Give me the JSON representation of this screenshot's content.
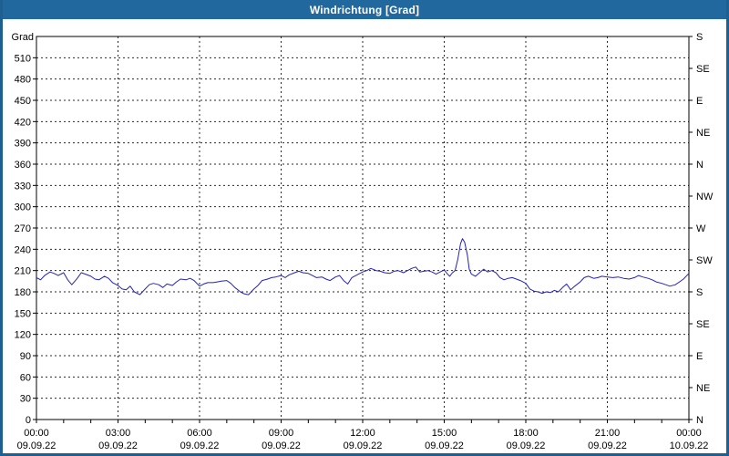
{
  "window": {
    "title": "Windrichtung [Grad]"
  },
  "colors": {
    "titlebar_bg": "#20689E",
    "titlebar_fg": "#FFFFFF",
    "frame": "#1E5F92",
    "plot_bg": "#FFFFFF",
    "axis": "#000000",
    "grid": "#2A2A2A",
    "label": "#000000",
    "line": "#2222BE"
  },
  "chart_data": {
    "type": "line",
    "title": "Windrichtung [Grad]",
    "grid": "dashed",
    "legend": "none",
    "y_axis_left": {
      "label": "Grad",
      "min": 0,
      "max": 540,
      "tick_step": 30,
      "tick_labels": [
        "0",
        "30",
        "60",
        "90",
        "120",
        "150",
        "180",
        "210",
        "240",
        "270",
        "300",
        "330",
        "360",
        "390",
        "420",
        "450",
        "480",
        "510"
      ]
    },
    "y_axis_right": {
      "tick_step": 45,
      "labels": [
        {
          "value": 540,
          "label": "S"
        },
        {
          "value": 495,
          "label": "SE"
        },
        {
          "value": 450,
          "label": "E"
        },
        {
          "value": 405,
          "label": "NE"
        },
        {
          "value": 360,
          "label": "N"
        },
        {
          "value": 315,
          "label": "NW"
        },
        {
          "value": 270,
          "label": "W"
        },
        {
          "value": 225,
          "label": "SW"
        },
        {
          "value": 180,
          "label": "S"
        },
        {
          "value": 135,
          "label": "SE"
        },
        {
          "value": 90,
          "label": "E"
        },
        {
          "value": 45,
          "label": "NE"
        },
        {
          "value": 0,
          "label": "N"
        }
      ]
    },
    "x_axis": {
      "start_hour": 0,
      "end_hour": 24,
      "major_tick_step_hours": 3,
      "minor_tick_step_hours": 1,
      "ticks": [
        {
          "hour": 0,
          "time": "00:00",
          "date": "09.09.22"
        },
        {
          "hour": 3,
          "time": "03:00",
          "date": "09.09.22"
        },
        {
          "hour": 6,
          "time": "06:00",
          "date": "09.09.22"
        },
        {
          "hour": 9,
          "time": "09:00",
          "date": "09.09.22"
        },
        {
          "hour": 12,
          "time": "12:00",
          "date": "09.09.22"
        },
        {
          "hour": 15,
          "time": "15:00",
          "date": "09.09.22"
        },
        {
          "hour": 18,
          "time": "18:00",
          "date": "09.09.22"
        },
        {
          "hour": 21,
          "time": "21:00",
          "date": "09.09.22"
        },
        {
          "hour": 24,
          "time": "00:00",
          "date": "10.09.22"
        }
      ]
    },
    "series": [
      {
        "name": "Windrichtung",
        "unit": "Grad",
        "points": [
          [
            0,
            200
          ],
          [
            0.15,
            197
          ],
          [
            0.3,
            203
          ],
          [
            0.5,
            208
          ],
          [
            0.65,
            206
          ],
          [
            0.8,
            203
          ],
          [
            1,
            207
          ],
          [
            1.15,
            197
          ],
          [
            1.3,
            190
          ],
          [
            1.5,
            199
          ],
          [
            1.65,
            207
          ],
          [
            1.8,
            205
          ],
          [
            2,
            202
          ],
          [
            2.15,
            198
          ],
          [
            2.3,
            197
          ],
          [
            2.5,
            202
          ],
          [
            2.65,
            199
          ],
          [
            2.8,
            193
          ],
          [
            3,
            189
          ],
          [
            3.15,
            184
          ],
          [
            3.3,
            183
          ],
          [
            3.45,
            188
          ],
          [
            3.6,
            180
          ],
          [
            3.8,
            176
          ],
          [
            4,
            184
          ],
          [
            4.15,
            190
          ],
          [
            4.3,
            192
          ],
          [
            4.5,
            190
          ],
          [
            4.65,
            186
          ],
          [
            4.8,
            191
          ],
          [
            5,
            189
          ],
          [
            5.15,
            194
          ],
          [
            5.3,
            198
          ],
          [
            5.5,
            197
          ],
          [
            5.65,
            199
          ],
          [
            5.8,
            196
          ],
          [
            6,
            188
          ],
          [
            6.15,
            191
          ],
          [
            6.3,
            193
          ],
          [
            6.5,
            193
          ],
          [
            6.65,
            194
          ],
          [
            6.8,
            195
          ],
          [
            7,
            196
          ],
          [
            7.15,
            192
          ],
          [
            7.3,
            186
          ],
          [
            7.5,
            180
          ],
          [
            7.65,
            177
          ],
          [
            7.8,
            176
          ],
          [
            8,
            184
          ],
          [
            8.15,
            189
          ],
          [
            8.3,
            196
          ],
          [
            8.5,
            198
          ],
          [
            8.65,
            200
          ],
          [
            8.8,
            201
          ],
          [
            9,
            203
          ],
          [
            9.15,
            200
          ],
          [
            9.3,
            204
          ],
          [
            9.5,
            207
          ],
          [
            9.65,
            209
          ],
          [
            9.8,
            207
          ],
          [
            10,
            206
          ],
          [
            10.15,
            203
          ],
          [
            10.3,
            200
          ],
          [
            10.5,
            201
          ],
          [
            10.65,
            198
          ],
          [
            10.8,
            196
          ],
          [
            11,
            201
          ],
          [
            11.15,
            203
          ],
          [
            11.3,
            196
          ],
          [
            11.45,
            191
          ],
          [
            11.6,
            200
          ],
          [
            11.8,
            204
          ],
          [
            12,
            208
          ],
          [
            12.15,
            210
          ],
          [
            12.3,
            213
          ],
          [
            12.5,
            210
          ],
          [
            12.65,
            209
          ],
          [
            12.8,
            207
          ],
          [
            13,
            206
          ],
          [
            13.15,
            209
          ],
          [
            13.3,
            210
          ],
          [
            13.5,
            207
          ],
          [
            13.65,
            210
          ],
          [
            13.8,
            213
          ],
          [
            13.95,
            215
          ],
          [
            14.1,
            208
          ],
          [
            14.25,
            209
          ],
          [
            14.4,
            210
          ],
          [
            14.55,
            208
          ],
          [
            14.7,
            205
          ],
          [
            14.85,
            208
          ],
          [
            15,
            211
          ],
          [
            15.1,
            206
          ],
          [
            15.2,
            202
          ],
          [
            15.3,
            207
          ],
          [
            15.4,
            210
          ],
          [
            15.5,
            226
          ],
          [
            15.6,
            248
          ],
          [
            15.67,
            255
          ],
          [
            15.75,
            250
          ],
          [
            15.85,
            232
          ],
          [
            15.92,
            212
          ],
          [
            16,
            205
          ],
          [
            16.15,
            202
          ],
          [
            16.3,
            207
          ],
          [
            16.45,
            212
          ],
          [
            16.6,
            208
          ],
          [
            16.75,
            210
          ],
          [
            16.9,
            207
          ],
          [
            17.05,
            200
          ],
          [
            17.2,
            197
          ],
          [
            17.35,
            199
          ],
          [
            17.5,
            200
          ],
          [
            17.65,
            198
          ],
          [
            17.8,
            196
          ],
          [
            18,
            192
          ],
          [
            18.15,
            184
          ],
          [
            18.3,
            181
          ],
          [
            18.45,
            180
          ],
          [
            18.6,
            178
          ],
          [
            18.75,
            180
          ],
          [
            18.9,
            179
          ],
          [
            19.05,
            182
          ],
          [
            19.2,
            180
          ],
          [
            19.35,
            186
          ],
          [
            19.5,
            191
          ],
          [
            19.65,
            183
          ],
          [
            19.8,
            188
          ],
          [
            20,
            194
          ],
          [
            20.15,
            200
          ],
          [
            20.3,
            202
          ],
          [
            20.5,
            199
          ],
          [
            20.65,
            200
          ],
          [
            20.8,
            202
          ],
          [
            21,
            201
          ],
          [
            21.2,
            200
          ],
          [
            21.4,
            201
          ],
          [
            21.6,
            199
          ],
          [
            21.8,
            198
          ],
          [
            22,
            200
          ],
          [
            22.15,
            203
          ],
          [
            22.3,
            201
          ],
          [
            22.5,
            199
          ],
          [
            22.65,
            197
          ],
          [
            22.8,
            194
          ],
          [
            23,
            192
          ],
          [
            23.15,
            190
          ],
          [
            23.3,
            188
          ],
          [
            23.5,
            190
          ],
          [
            23.65,
            194
          ],
          [
            23.8,
            198
          ],
          [
            24,
            206
          ]
        ]
      }
    ]
  }
}
